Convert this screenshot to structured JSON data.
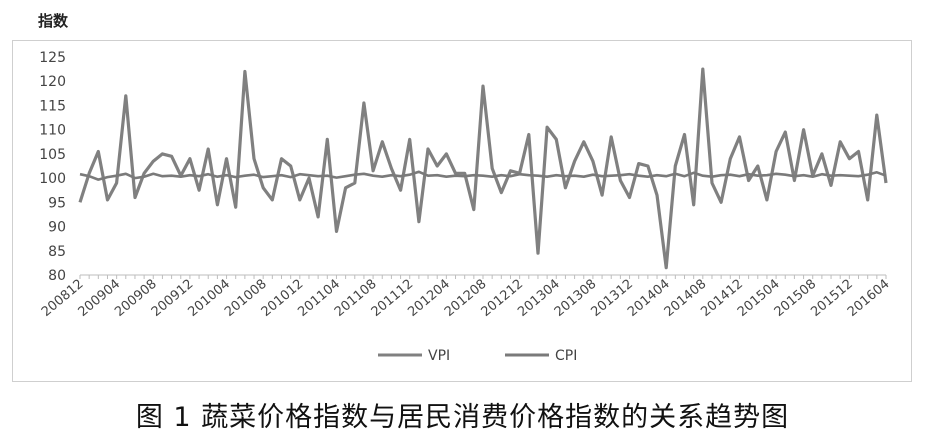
{
  "caption": "图 1   蔬菜价格指数与居民消费价格指数的关系趋势图",
  "colors": {
    "vpi": "#808080",
    "cpi": "#7a7a7a",
    "axis": "#bdbdbd",
    "text": "#444444"
  },
  "chart_data": {
    "type": "line",
    "ylabel": "指数",
    "ylim": [
      80,
      125
    ],
    "yticks": [
      80,
      85,
      90,
      95,
      100,
      105,
      110,
      115,
      120,
      125
    ],
    "grid": false,
    "legend": "bottom",
    "x_tick_labels": [
      "200812",
      "200904",
      "200908",
      "200912",
      "201004",
      "201008",
      "201012",
      "201104",
      "201108",
      "201112",
      "201204",
      "201208",
      "201212",
      "201304",
      "201308",
      "201312",
      "201404",
      "201408",
      "201412",
      "201504",
      "201508",
      "201512",
      "201604"
    ],
    "x": [
      "200812",
      "200901",
      "200902",
      "200903",
      "200904",
      "200905",
      "200906",
      "200907",
      "200908",
      "200909",
      "200910",
      "200911",
      "200912",
      "201001",
      "201002",
      "201003",
      "201004",
      "201005",
      "201006",
      "201007",
      "201008",
      "201009",
      "201010",
      "201011",
      "201012",
      "201101",
      "201102",
      "201103",
      "201104",
      "201105",
      "201106",
      "201107",
      "201108",
      "201109",
      "201110",
      "201111",
      "201112",
      "201201",
      "201202",
      "201203",
      "201204",
      "201205",
      "201206",
      "201207",
      "201208",
      "201209",
      "201210",
      "201211",
      "201212",
      "201301",
      "201302",
      "201303",
      "201304",
      "201305",
      "201306",
      "201307",
      "201308",
      "201309",
      "201310",
      "201311",
      "201312",
      "201401",
      "201402",
      "201403",
      "201404",
      "201405",
      "201406",
      "201407",
      "201408",
      "201409",
      "201410",
      "201411",
      "201412",
      "201501",
      "201502",
      "201503",
      "201504",
      "201505",
      "201506",
      "201507",
      "201508",
      "201509",
      "201510",
      "201511",
      "201512",
      "201601",
      "201602",
      "201603",
      "201604"
    ],
    "series": [
      {
        "name": "VPI",
        "values": [
          95,
          101,
          105.5,
          95.5,
          99,
          117,
          96,
          101,
          103.5,
          105,
          104.5,
          100.5,
          104,
          97.5,
          106,
          94.5,
          104,
          94,
          122,
          104,
          98,
          95.5,
          104,
          102.5,
          95.5,
          100,
          92,
          108,
          89,
          98,
          99,
          115.5,
          101.5,
          107.5,
          102,
          97.5,
          108,
          91,
          106,
          102.5,
          105,
          101,
          101,
          93.5,
          119,
          102,
          97,
          101.5,
          101,
          109,
          84.5,
          110.5,
          108,
          98,
          103.5,
          107.5,
          103.5,
          96.5,
          108.5,
          99.5,
          96,
          103,
          102.5,
          96.5,
          81.5,
          102.5,
          109,
          94.5,
          122.5,
          99,
          95,
          104,
          108.5,
          99.5,
          102.5,
          95.5,
          105.5,
          109.5,
          99.5,
          110,
          100.5,
          105,
          98.5,
          107.5,
          104,
          105.5,
          95.5,
          113,
          99
        ]
      },
      {
        "name": "CPI",
        "values": [
          100.8,
          100.4,
          99.7,
          100.2,
          100.5,
          100.9,
          100,
          100.3,
          100.9,
          100.4,
          100.5,
          100.3,
          100.6,
          100.4,
          100.8,
          100.3,
          100.6,
          100.2,
          100.5,
          100.7,
          100.2,
          100.4,
          100.6,
          100.2,
          100.8,
          100.6,
          100.4,
          100.5,
          100.1,
          100.4,
          100.7,
          100.9,
          100.5,
          100.3,
          100.6,
          100.4,
          100.7,
          101.3,
          100.5,
          100.6,
          100.3,
          100.5,
          100.4,
          100.6,
          100.5,
          100.3,
          100.6,
          100.4,
          100.8,
          100.6,
          100.5,
          100.3,
          100.6,
          100.4,
          100.5,
          100.3,
          100.7,
          100.4,
          100.5,
          100.6,
          100.8,
          100.5,
          100.3,
          100.6,
          100.4,
          100.9,
          100.4,
          101.1,
          100.5,
          100.3,
          100.6,
          100.7,
          100.4,
          100.8,
          100.5,
          100.6,
          100.9,
          100.7,
          100.4,
          100.6,
          100.3,
          100.8,
          100.5,
          100.6,
          100.5,
          100.4,
          100.7,
          101.2,
          100.5
        ]
      }
    ]
  }
}
